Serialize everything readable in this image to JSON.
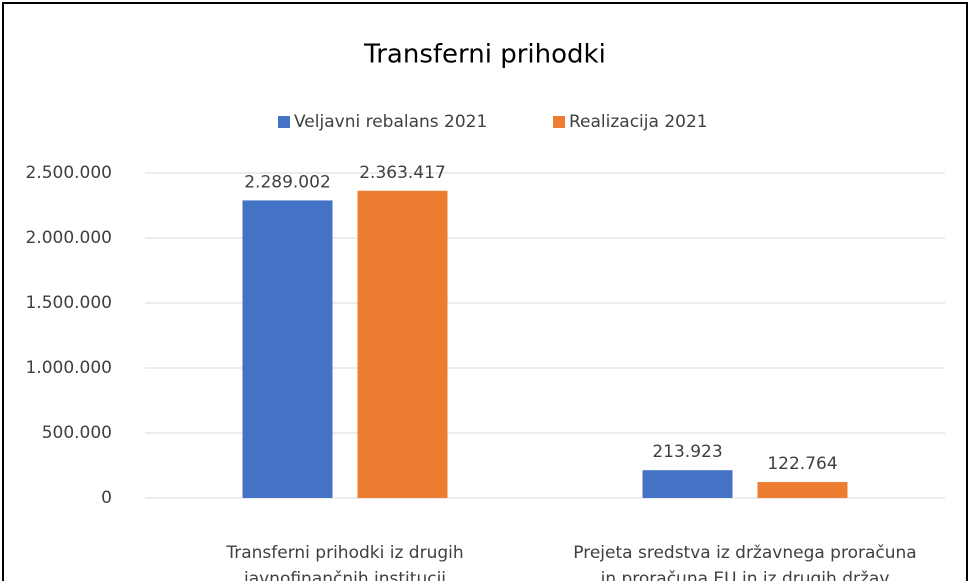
{
  "chart_data": {
    "type": "bar",
    "title": "Transferni prihodki",
    "categories": [
      [
        "Transferni prihodki iz drugih",
        "javnofinančnih institucij"
      ],
      [
        "Prejeta sredstva iz državnega proračuna",
        "in proračuna EU in iz drugih držav"
      ]
    ],
    "series": [
      {
        "name": "Veljavni rebalans 2021",
        "color": "#4472c4",
        "values": [
          2289002,
          213923
        ],
        "value_labels": [
          "2.289.002",
          "213.923"
        ]
      },
      {
        "name": "Realizacija 2021",
        "color": "#ed7d31",
        "values": [
          2363417,
          122764
        ],
        "value_labels": [
          "2.363.417",
          "122.764"
        ]
      }
    ],
    "ylim": [
      0,
      2500000
    ],
    "yticks": [
      0,
      {
        "value": 500000,
        "label": "500.000"
      },
      {
        "value": 1000000,
        "label": "1.000.000"
      },
      {
        "value": 1500000,
        "label": "1.500.000"
      },
      {
        "value": 2000000,
        "label": "2.000.000"
      },
      {
        "value": 2500000,
        "label": "2.500.000"
      }
    ],
    "grid": true,
    "legend": "top"
  }
}
